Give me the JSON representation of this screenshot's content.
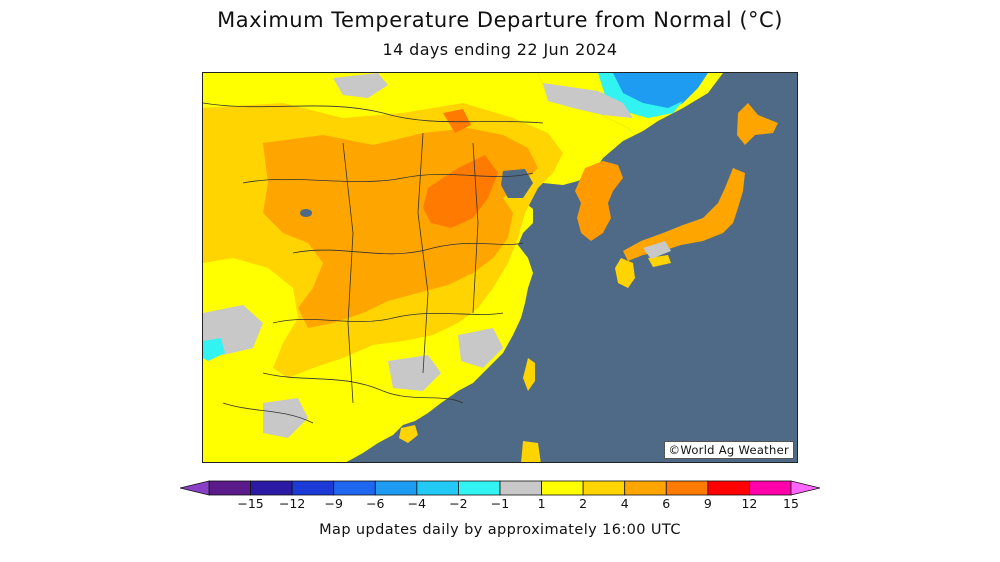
{
  "header": {
    "title": "Maximum Temperature Departure from Normal (°C)",
    "subtitle": "14 days ending 22 Jun 2024"
  },
  "map": {
    "credit": "©World Ag Weather",
    "region": "East Asia",
    "ocean_color": "#4e6a86"
  },
  "legend": {
    "min_arrow_color": "#8a3fc7",
    "max_arrow_color": "#ff66ff",
    "bins": [
      {
        "color": "#5a1a8a"
      },
      {
        "color": "#2a1aa5"
      },
      {
        "color": "#1c3ad6"
      },
      {
        "color": "#1f66f0"
      },
      {
        "color": "#1e9cf2"
      },
      {
        "color": "#23c9f5"
      },
      {
        "color": "#33f2f2"
      },
      {
        "color": "#c8c8c8"
      },
      {
        "color": "#ffff00"
      },
      {
        "color": "#ffd400"
      },
      {
        "color": "#ffa500"
      },
      {
        "color": "#ff7a00"
      },
      {
        "color": "#ff0000"
      },
      {
        "color": "#ff00aa"
      }
    ],
    "ticks": [
      "−15",
      "−12",
      "−9",
      "−6",
      "−4",
      "−2",
      "−1",
      "1",
      "2",
      "4",
      "6",
      "9",
      "12",
      "15"
    ]
  },
  "footer": {
    "note": "Map updates daily by approximately 16:00 UTC"
  }
}
